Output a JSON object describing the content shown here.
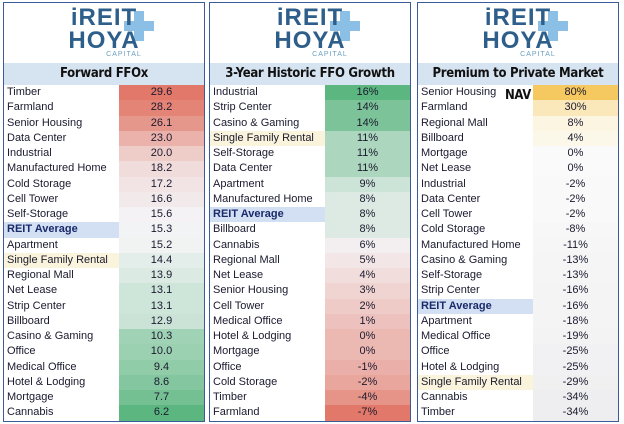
{
  "logo": {
    "line1": "iREIT",
    "line2": "HOYA",
    "line3": "CAPITAL"
  },
  "panels": [
    {
      "title": "Forward FFOx",
      "scale": "ffo",
      "rows": [
        [
          "Timber",
          "29.6"
        ],
        [
          "Farmland",
          "28.2"
        ],
        [
          "Senior Housing",
          "26.1"
        ],
        [
          "Data Center",
          "23.0"
        ],
        [
          "Industrial",
          "20.0"
        ],
        [
          "Manufactured Home",
          "18.2"
        ],
        [
          "Cold Storage",
          "17.2"
        ],
        [
          "Cell Tower",
          "16.6"
        ],
        [
          "Self-Storage",
          "15.6"
        ],
        [
          "REIT Average",
          "15.3"
        ],
        [
          "Apartment",
          "15.2"
        ],
        [
          "Single Family Rental",
          "14.4"
        ],
        [
          "Regional Mall",
          "13.9"
        ],
        [
          "Net Lease",
          "13.1"
        ],
        [
          "Strip Center",
          "13.1"
        ],
        [
          "Billboard",
          "12.9"
        ],
        [
          "Casino & Gaming",
          "10.3"
        ],
        [
          "Office",
          "10.0"
        ],
        [
          "Medical Office",
          "9.4"
        ],
        [
          "Hotel & Lodging",
          "8.6"
        ],
        [
          "Mortgage",
          "7.7"
        ],
        [
          "Cannabis",
          "6.2"
        ]
      ]
    },
    {
      "title": "3-Year Historic FFO Growth",
      "scale": "growth",
      "rows": [
        [
          "Industrial",
          "16%"
        ],
        [
          "Strip Center",
          "14%"
        ],
        [
          "Casino & Gaming",
          "14%"
        ],
        [
          "Single Family Rental",
          "11%"
        ],
        [
          "Self-Storage",
          "11%"
        ],
        [
          "Data Center",
          "11%"
        ],
        [
          "Apartment",
          "9%"
        ],
        [
          "Manufactured Home",
          "8%"
        ],
        [
          "REIT Average",
          "8%"
        ],
        [
          "Billboard",
          "8%"
        ],
        [
          "Cannabis",
          "6%"
        ],
        [
          "Regional Mall",
          "5%"
        ],
        [
          "Net Lease",
          "4%"
        ],
        [
          "Senior Housing",
          "3%"
        ],
        [
          "Cell Tower",
          "2%"
        ],
        [
          "Medical Office",
          "1%"
        ],
        [
          "Hotel & Lodging",
          "0%"
        ],
        [
          "Mortgage",
          "0%"
        ],
        [
          "Office",
          "-1%"
        ],
        [
          "Cold Storage",
          "-2%"
        ],
        [
          "Timber",
          "-4%"
        ],
        [
          "Farmland",
          "-7%"
        ]
      ]
    },
    {
      "title": "Premium to Private Market NAV",
      "scale": "nav",
      "rows": [
        [
          "Senior Housing",
          "80%"
        ],
        [
          "Farmland",
          "30%"
        ],
        [
          "Regional Mall",
          "8%"
        ],
        [
          "Billboard",
          "4%"
        ],
        [
          "Mortgage",
          "0%"
        ],
        [
          "Net Lease",
          "0%"
        ],
        [
          "Industrial",
          "-2%"
        ],
        [
          "Data Center",
          "-2%"
        ],
        [
          "Cell Tower",
          "-2%"
        ],
        [
          "Cold Storage",
          "-8%"
        ],
        [
          "Manufactured Home",
          "-11%"
        ],
        [
          "Casino & Gaming",
          "-13%"
        ],
        [
          "Self-Storage",
          "-13%"
        ],
        [
          "Strip Center",
          "-16%"
        ],
        [
          "REIT Average",
          "-16%"
        ],
        [
          "Apartment",
          "-18%"
        ],
        [
          "Medical Office",
          "-19%"
        ],
        [
          "Office",
          "-25%"
        ],
        [
          "Hotel & Lodging",
          "-25%"
        ],
        [
          "Single Family Rental",
          "-29%"
        ],
        [
          "Cannabis",
          "-34%"
        ],
        [
          "Timber",
          "-34%"
        ]
      ]
    }
  ]
}
